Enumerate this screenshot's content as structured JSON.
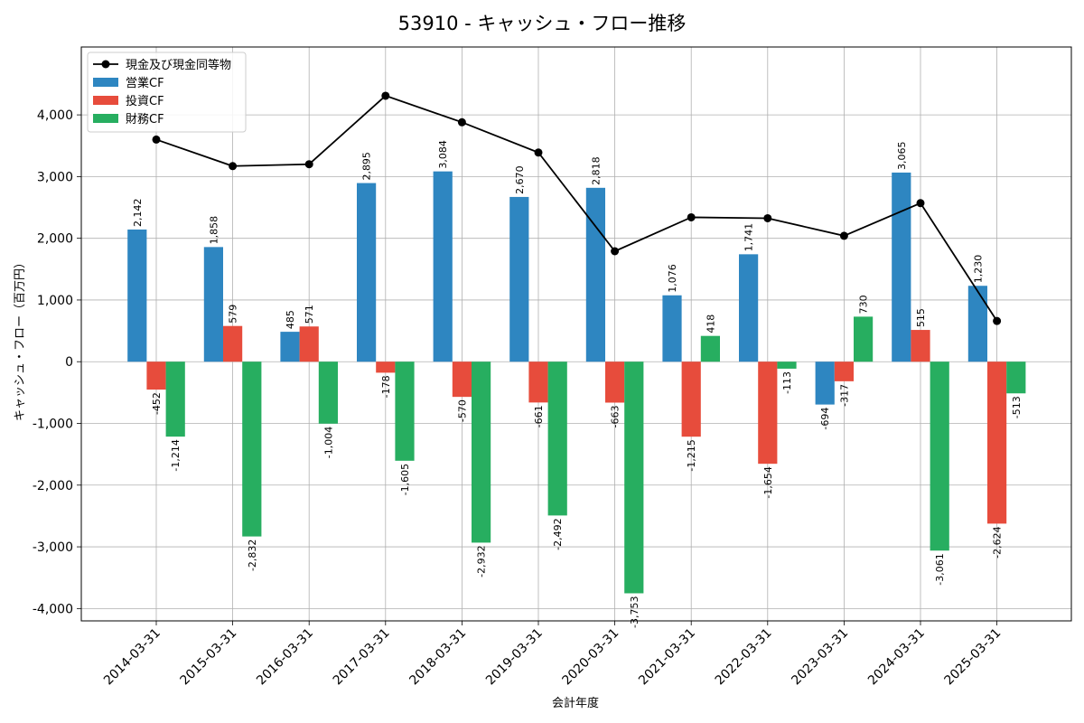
{
  "chart_data": {
    "type": "bar",
    "title": "53910 - キャッシュ・フロー推移",
    "xlabel": "会計年度",
    "ylabel": "キャッシュ・フロー（百万円）",
    "categories": [
      "2014-03-31",
      "2015-03-31",
      "2016-03-31",
      "2017-03-31",
      "2018-03-31",
      "2019-03-31",
      "2020-03-31",
      "2021-03-31",
      "2022-03-31",
      "2023-03-31",
      "2024-03-31",
      "2025-03-31"
    ],
    "ylim": [
      -4200,
      5100
    ],
    "yticks": [
      -4000,
      -3000,
      -2000,
      -1000,
      0,
      1000,
      2000,
      3000,
      4000
    ],
    "ytick_labels": [
      "-4,000",
      "-3,000",
      "-2,000",
      "-1,000",
      "0",
      "1,000",
      "2,000",
      "3,000",
      "4,000"
    ],
    "grid": true,
    "legend_position": "top-left",
    "series": [
      {
        "name": "営業CF",
        "kind": "bar",
        "color": "#2e86c1",
        "values": [
          2142,
          1858,
          485,
          2895,
          3084,
          2670,
          2818,
          1076,
          1741,
          -694,
          3065,
          1230
        ],
        "labels": [
          "2,142",
          "1,858",
          "485",
          "2,895",
          "3,084",
          "2,670",
          "2,818",
          "1,076",
          "1,741",
          "-694",
          "3,065",
          "1,230"
        ]
      },
      {
        "name": "投資CF",
        "kind": "bar",
        "color": "#e74c3c",
        "values": [
          -452,
          579,
          571,
          -178,
          -570,
          -661,
          -663,
          -1215,
          -1654,
          -317,
          515,
          -2624
        ],
        "labels": [
          "-452",
          "579",
          "571",
          "-178",
          "-570",
          "-661",
          "-663",
          "-1,215",
          "-1,654",
          "-317",
          "515",
          "-2,624"
        ]
      },
      {
        "name": "財務CF",
        "kind": "bar",
        "color": "#27ae60",
        "values": [
          -1214,
          -2832,
          -1004,
          -1605,
          -2932,
          -2492,
          -3753,
          418,
          -113,
          730,
          -3061,
          -513
        ],
        "labels": [
          "-1,214",
          "-2,832",
          "-1,004",
          "-1,605",
          "-2,932",
          "-2,492",
          "-3,753",
          "418",
          "-113",
          "730",
          "-3,061",
          "-513"
        ]
      },
      {
        "name": "現金及び現金同等物",
        "kind": "line",
        "color": "#000000",
        "values": [
          3600,
          3170,
          3200,
          4310,
          3880,
          3390,
          1790,
          2340,
          2325,
          2040,
          2570,
          660
        ]
      }
    ]
  }
}
